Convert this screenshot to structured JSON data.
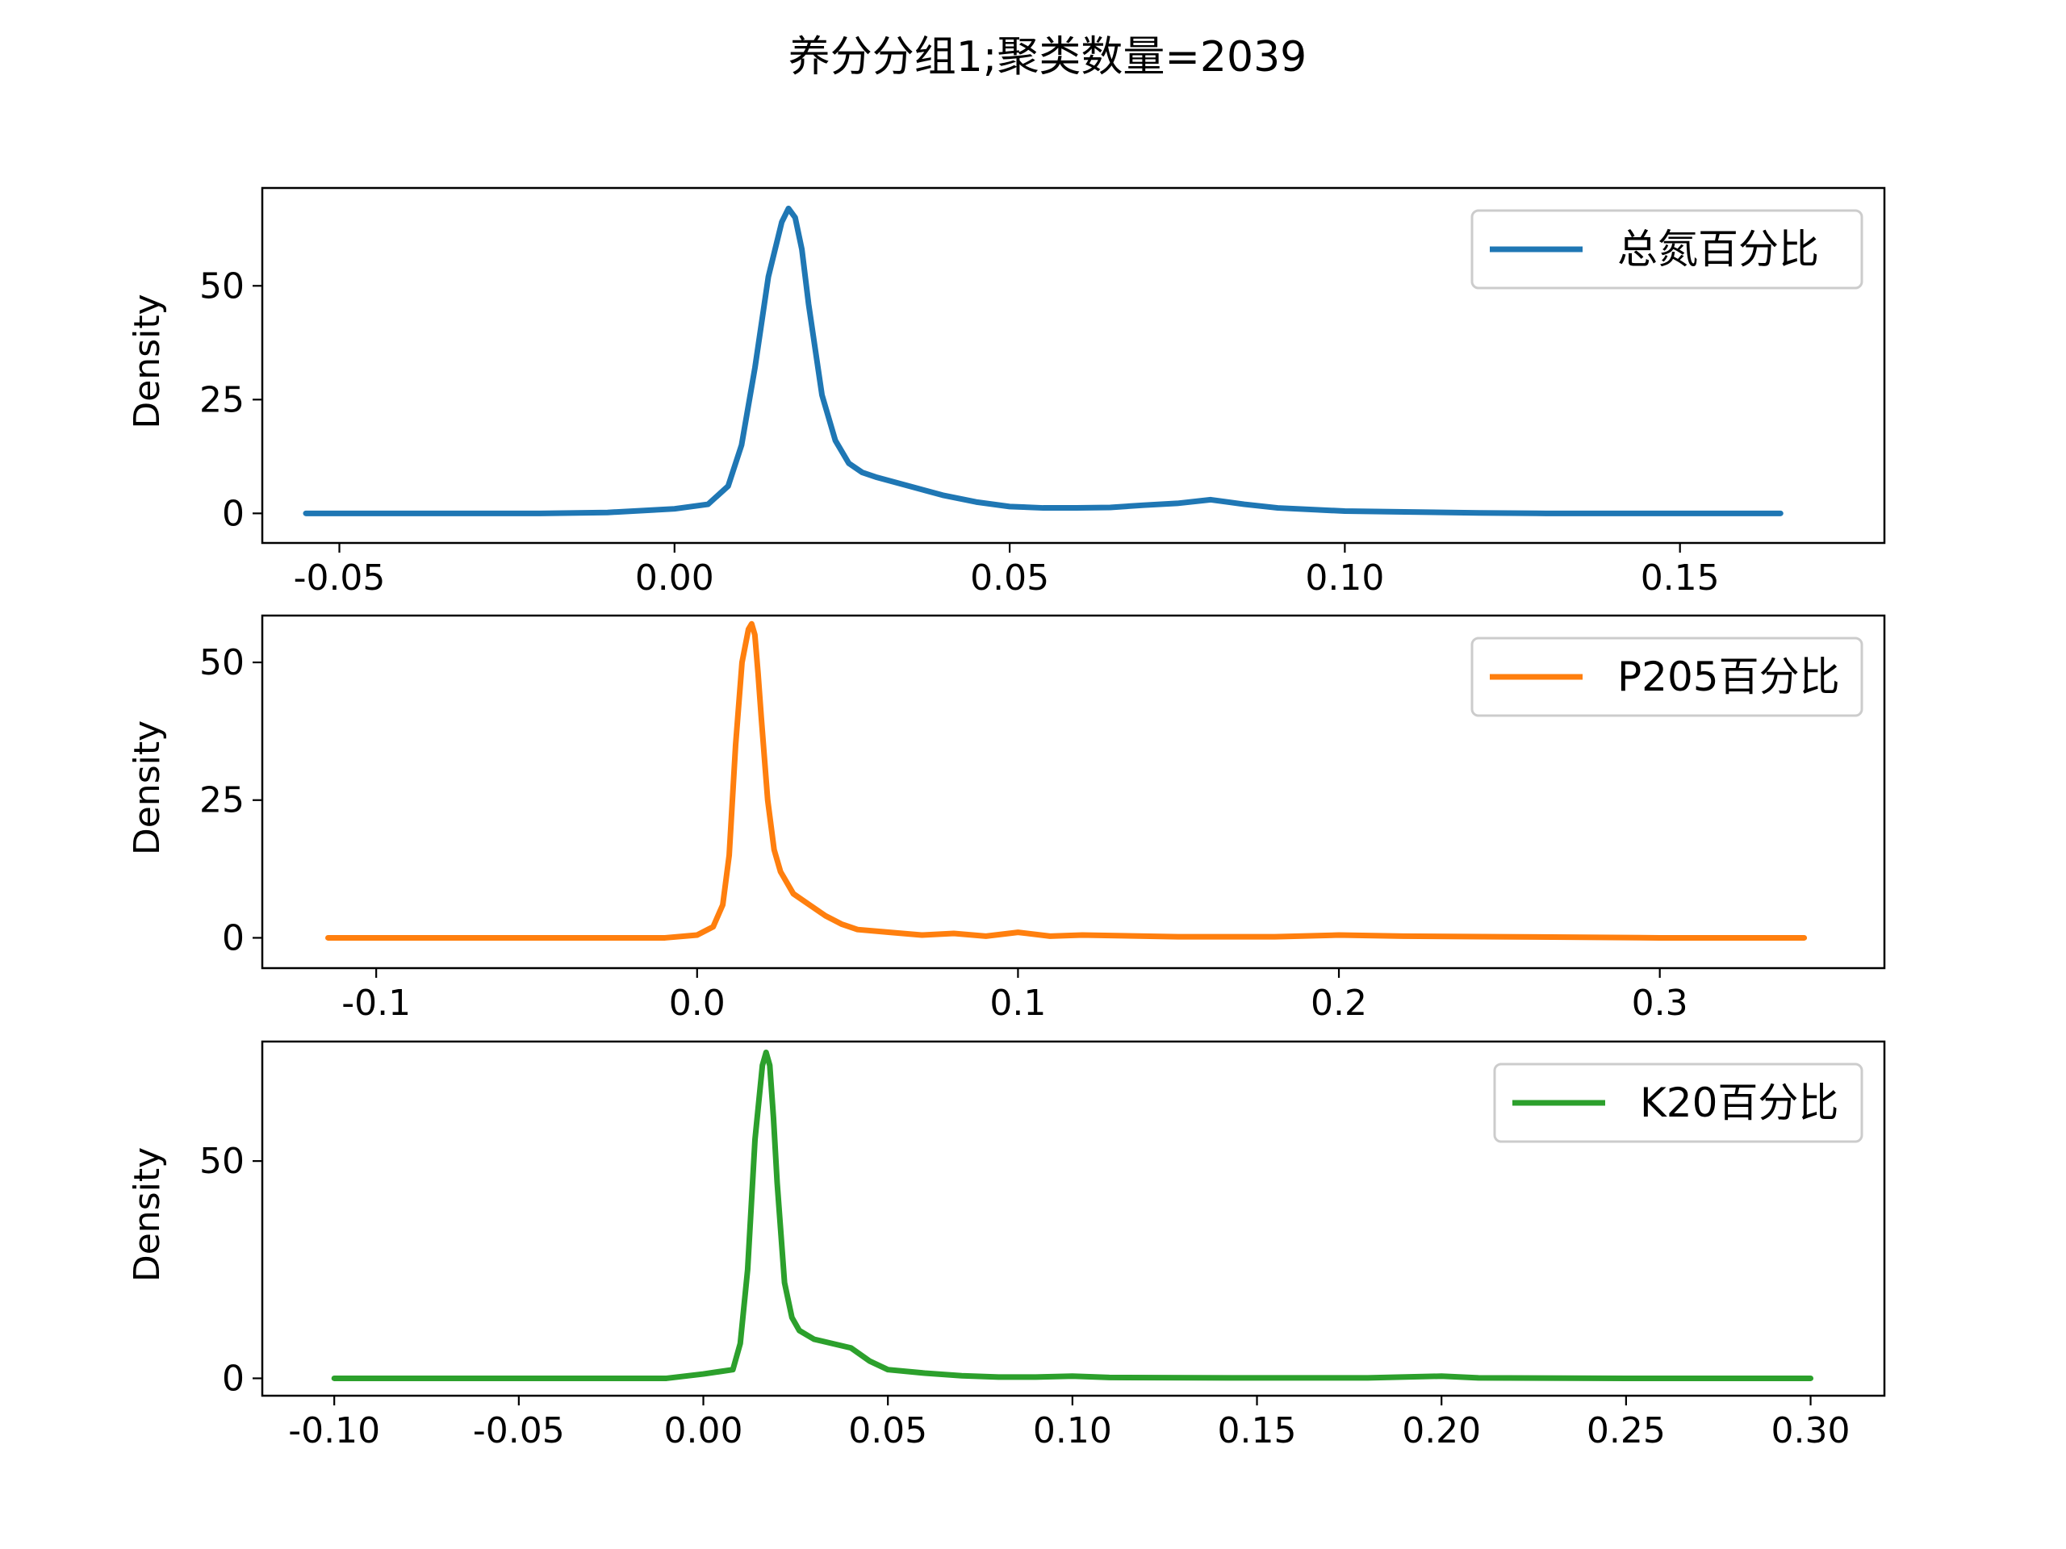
{
  "figure": {
    "title": "养分分组1;聚类数量=2039"
  },
  "chart_data": [
    {
      "type": "line",
      "kind": "kde",
      "title": "",
      "xlabel": "",
      "ylabel": "Density",
      "xlim": [
        -0.0615,
        0.1805
      ],
      "ylim": [
        -6.5,
        71.5
      ],
      "xticks": [
        -0.05,
        0.0,
        0.05,
        0.1,
        0.15
      ],
      "xtick_labels": [
        "-0.05",
        "0.00",
        "0.05",
        "0.10",
        "0.15"
      ],
      "yticks": [
        0,
        25,
        50
      ],
      "ytick_labels": [
        "0",
        "25",
        "50"
      ],
      "legend_position": "upper right",
      "grid": false,
      "series": [
        {
          "name": "总氮百分比",
          "color": "#1f77b4",
          "x": [
            -0.055,
            -0.04,
            -0.02,
            -0.01,
            0.0,
            0.005,
            0.008,
            0.01,
            0.012,
            0.014,
            0.016,
            0.017,
            0.018,
            0.019,
            0.02,
            0.022,
            0.024,
            0.026,
            0.028,
            0.03,
            0.035,
            0.04,
            0.045,
            0.05,
            0.055,
            0.06,
            0.065,
            0.07,
            0.075,
            0.08,
            0.085,
            0.09,
            0.1,
            0.11,
            0.12,
            0.13,
            0.14,
            0.15,
            0.165
          ],
          "y": [
            0,
            0,
            0,
            0.2,
            1,
            2,
            6,
            15,
            32,
            52,
            64,
            67,
            65,
            58,
            46,
            26,
            16,
            11,
            9,
            8,
            6,
            4,
            2.5,
            1.5,
            1.2,
            1.2,
            1.3,
            1.8,
            2.2,
            3.0,
            2.0,
            1.2,
            0.5,
            0.3,
            0.1,
            0,
            0,
            0,
            0
          ]
        }
      ]
    },
    {
      "type": "line",
      "kind": "kde",
      "title": "",
      "xlabel": "",
      "ylabel": "Density",
      "xlim": [
        -0.1355,
        0.37
      ],
      "ylim": [
        -5.5,
        58.5
      ],
      "xticks": [
        -0.1,
        0.0,
        0.1,
        0.2,
        0.3
      ],
      "xtick_labels": [
        "-0.1",
        "0.0",
        "0.1",
        "0.2",
        "0.3"
      ],
      "yticks": [
        0,
        25,
        50
      ],
      "ytick_labels": [
        "0",
        "25",
        "50"
      ],
      "legend_position": "upper right",
      "grid": false,
      "series": [
        {
          "name": "P205百分比",
          "color": "#ff7f0e",
          "x": [
            -0.115,
            -0.05,
            -0.01,
            0.0,
            0.005,
            0.008,
            0.01,
            0.012,
            0.014,
            0.016,
            0.017,
            0.018,
            0.019,
            0.02,
            0.022,
            0.024,
            0.026,
            0.028,
            0.03,
            0.035,
            0.04,
            0.045,
            0.05,
            0.06,
            0.07,
            0.08,
            0.09,
            0.1,
            0.11,
            0.12,
            0.15,
            0.18,
            0.2,
            0.22,
            0.25,
            0.3,
            0.345
          ],
          "y": [
            0,
            0,
            0,
            0.5,
            2,
            6,
            15,
            35,
            50,
            56,
            57,
            55,
            48,
            40,
            25,
            16,
            12,
            10,
            8,
            6,
            4,
            2.5,
            1.5,
            1.0,
            0.5,
            0.8,
            0.3,
            1.0,
            0.3,
            0.5,
            0.2,
            0.2,
            0.5,
            0.3,
            0.2,
            0,
            0
          ]
        }
      ]
    },
    {
      "type": "line",
      "kind": "kde",
      "title": "",
      "xlabel": "",
      "ylabel": "Density",
      "xlim": [
        -0.1195,
        0.32
      ],
      "ylim": [
        -4.0,
        77.5
      ],
      "xticks": [
        -0.1,
        -0.05,
        0.0,
        0.05,
        0.1,
        0.15,
        0.2,
        0.25,
        0.3
      ],
      "xtick_labels": [
        "-0.10",
        "-0.05",
        "0.00",
        "0.05",
        "0.10",
        "0.15",
        "0.20",
        "0.25",
        "0.30"
      ],
      "yticks": [
        0,
        50
      ],
      "ytick_labels": [
        "0",
        "50"
      ],
      "legend_position": "upper right",
      "grid": false,
      "series": [
        {
          "name": "K20百分比",
          "color": "#2ca02c",
          "x": [
            -0.1,
            -0.05,
            -0.01,
            0.0,
            0.004,
            0.008,
            0.01,
            0.012,
            0.014,
            0.016,
            0.017,
            0.018,
            0.019,
            0.02,
            0.022,
            0.024,
            0.026,
            0.028,
            0.03,
            0.035,
            0.04,
            0.045,
            0.05,
            0.06,
            0.07,
            0.08,
            0.09,
            0.1,
            0.11,
            0.15,
            0.18,
            0.2,
            0.21,
            0.25,
            0.3
          ],
          "y": [
            0,
            0,
            0,
            1,
            1.5,
            2,
            8,
            25,
            55,
            72,
            75,
            72,
            60,
            45,
            22,
            14,
            11,
            10,
            9,
            8,
            7,
            4,
            2,
            1.2,
            0.6,
            0.3,
            0.3,
            0.5,
            0.2,
            0.1,
            0.1,
            0.5,
            0.1,
            0,
            0
          ]
        }
      ]
    }
  ]
}
